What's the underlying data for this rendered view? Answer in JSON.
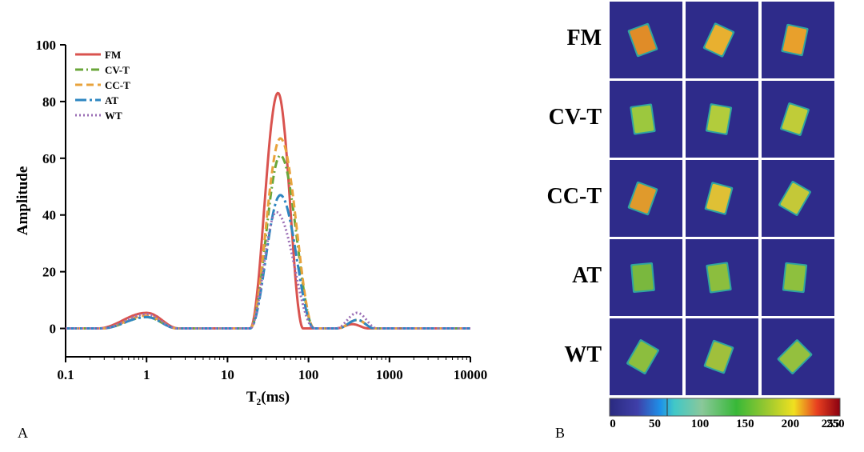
{
  "panel_labels": {
    "a": "A",
    "b": "B"
  },
  "chart_data": {
    "type": "line",
    "xscale": "log",
    "xlim": [
      0.1,
      10000
    ],
    "ylim": [
      -10,
      100
    ],
    "xlabel": "T₂(ms)",
    "ylabel": "Amplitude",
    "x_ticks": [
      0.1,
      1,
      10,
      100,
      1000,
      10000
    ],
    "x_tick_labels": [
      "0.1",
      "1",
      "10",
      "100",
      "1000",
      "10000"
    ],
    "y_ticks": [
      0,
      20,
      40,
      60,
      80,
      100
    ],
    "y_tick_labels": [
      "0",
      "20",
      "40",
      "60",
      "80",
      "100"
    ],
    "grid": false,
    "legend_position": "top-left",
    "series": [
      {
        "name": "FM",
        "color": "#d9534f",
        "dash": "solid",
        "peaks": [
          {
            "center": 1.0,
            "amp": 5.5,
            "lo": 0.25,
            "hi": 2.5
          },
          {
            "center": 42,
            "amp": 83,
            "lo": 19,
            "hi": 86
          },
          {
            "center": 350,
            "amp": 1.5,
            "lo": 220,
            "hi": 550
          }
        ]
      },
      {
        "name": "CV-T",
        "color": "#6aa63a",
        "dash": "dashdot",
        "peaks": [
          {
            "center": 1.0,
            "amp": 4.0,
            "lo": 0.28,
            "hi": 2.4
          },
          {
            "center": 45,
            "amp": 61,
            "lo": 19,
            "hi": 118
          },
          {
            "center": 400,
            "amp": 3.0,
            "lo": 230,
            "hi": 650
          }
        ]
      },
      {
        "name": "CC-T",
        "color": "#e8a33c",
        "dash": "dash",
        "peaks": [
          {
            "center": 1.0,
            "amp": 4.5,
            "lo": 0.28,
            "hi": 2.4
          },
          {
            "center": 45,
            "amp": 67,
            "lo": 19,
            "hi": 118
          },
          {
            "center": 400,
            "amp": 3.0,
            "lo": 230,
            "hi": 650
          }
        ]
      },
      {
        "name": "AT",
        "color": "#2e86c1",
        "dash": "longdashdot",
        "peaks": [
          {
            "center": 1.0,
            "amp": 4.0,
            "lo": 0.28,
            "hi": 2.4
          },
          {
            "center": 45,
            "amp": 47,
            "lo": 19,
            "hi": 118
          },
          {
            "center": 400,
            "amp": 3.0,
            "lo": 230,
            "hi": 650
          }
        ]
      },
      {
        "name": "WT",
        "color": "#9b6fb5",
        "dash": "dot",
        "peaks": [
          {
            "center": 1.0,
            "amp": 5.0,
            "lo": 0.28,
            "hi": 2.4
          },
          {
            "center": 40,
            "amp": 41,
            "lo": 19,
            "hi": 118
          },
          {
            "center": 400,
            "amp": 5.5,
            "lo": 220,
            "hi": 700
          }
        ]
      }
    ]
  },
  "mri_grid": {
    "rows": [
      {
        "label": "FM",
        "colors": [
          "#e08c28",
          "#e8b030",
          "#e8a02c"
        ]
      },
      {
        "label": "CV-T",
        "colors": [
          "#9cc83e",
          "#b2cc3c",
          "#c0cc38"
        ]
      },
      {
        "label": "CC-T",
        "colors": [
          "#e09a2c",
          "#dfc035",
          "#c4c838"
        ]
      },
      {
        "label": "AT",
        "colors": [
          "#7ab83e",
          "#8cbe3e",
          "#8ec03e"
        ]
      },
      {
        "label": "WT",
        "colors": [
          "#8cbe3e",
          "#a0c03c",
          "#94c03e"
        ]
      }
    ],
    "background": "#2e2b8a",
    "colorbar_ticks": [
      "0",
      "50",
      "100",
      "150",
      "200",
      "250",
      "255"
    ],
    "colorbar_values": [
      0,
      50,
      100,
      150,
      200,
      250,
      255
    ]
  }
}
